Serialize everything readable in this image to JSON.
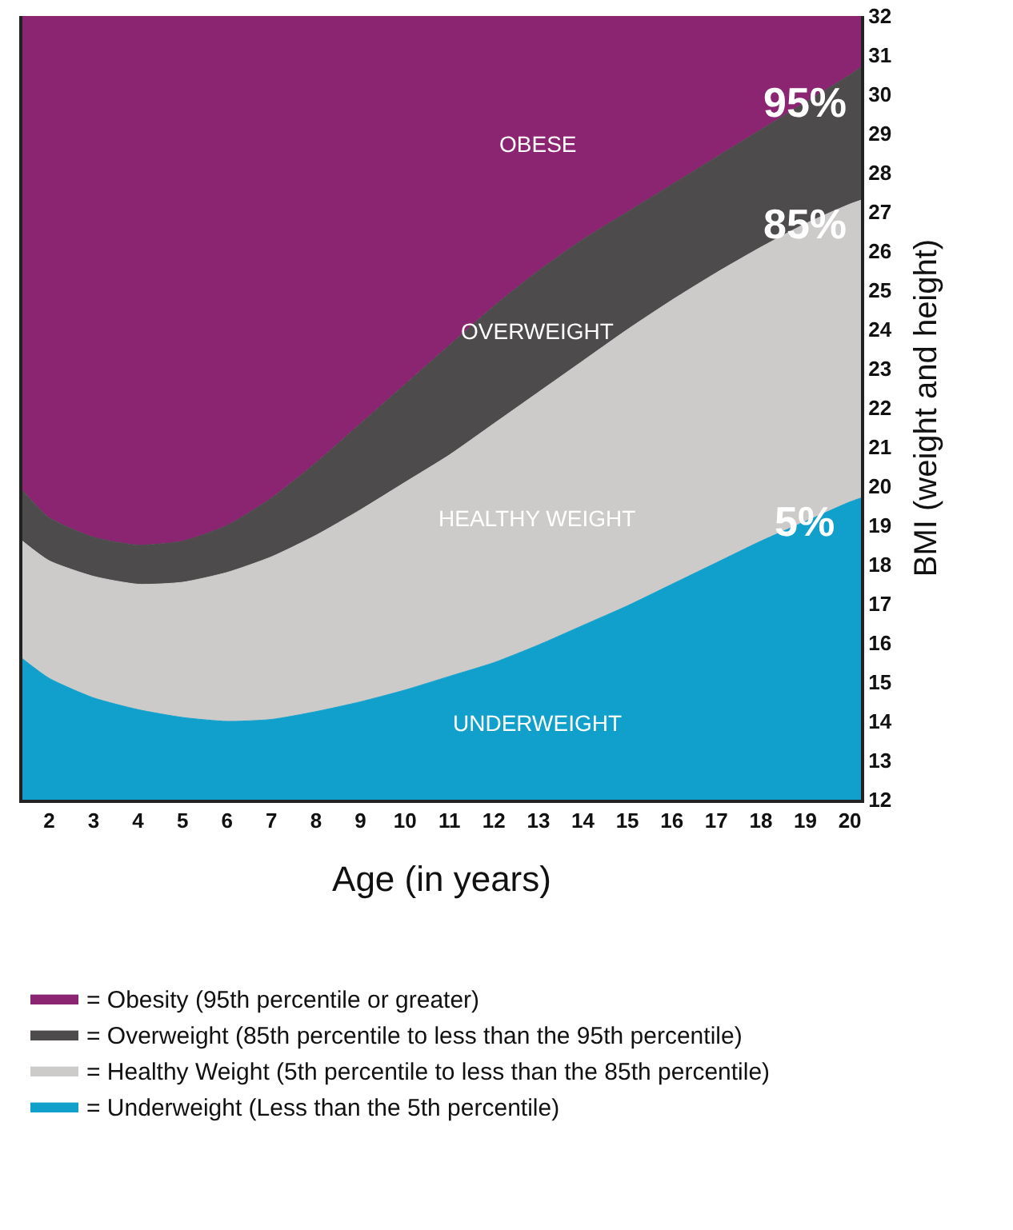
{
  "chart_data": {
    "type": "area",
    "xlabel": "Age (in years)",
    "ylabel": "BMI (weight and height)",
    "x": [
      1.4,
      2,
      3,
      4,
      5,
      6,
      7,
      8,
      9,
      10,
      11,
      12,
      13,
      14,
      15,
      16,
      17,
      18,
      19,
      20,
      20.25
    ],
    "series": [
      {
        "name": "= Underweight (Less than the 5th percentile)",
        "color": "#11a0cc",
        "values": [
          15.6,
          15.1,
          14.6,
          14.3,
          14.1,
          14.0,
          14.05,
          14.25,
          14.5,
          14.8,
          15.15,
          15.5,
          15.95,
          16.45,
          16.95,
          17.5,
          18.05,
          18.6,
          19.1,
          19.6,
          19.7
        ]
      },
      {
        "name": "= Healthy Weight (5th percentile to less than the 85th percentile)",
        "color": "#cdcaca",
        "values": [
          18.6,
          18.1,
          17.7,
          17.5,
          17.55,
          17.8,
          18.2,
          18.75,
          19.4,
          20.1,
          20.8,
          21.6,
          22.4,
          23.2,
          24.0,
          24.75,
          25.45,
          26.1,
          26.7,
          27.2,
          27.3
        ]
      },
      {
        "name": "= Overweight (85th percentile to less than the 95th percentile)",
        "color": "#4d4b4c",
        "values": [
          19.9,
          19.2,
          18.7,
          18.5,
          18.6,
          19.0,
          19.7,
          20.6,
          21.6,
          22.6,
          23.6,
          24.6,
          25.5,
          26.3,
          27.0,
          27.7,
          28.4,
          29.1,
          29.8,
          30.5,
          30.7
        ]
      },
      {
        "name": "= Obesity (95th percentile or greater)",
        "color": "#8b2572",
        "values": [
          32,
          32,
          32,
          32,
          32,
          32,
          32,
          32,
          32,
          32,
          32,
          32,
          32,
          32,
          32,
          32,
          32,
          32,
          32,
          32,
          32
        ]
      }
    ],
    "xlim": [
      1.4,
      20.25
    ],
    "xticks": [
      2,
      3,
      4,
      5,
      6,
      7,
      8,
      9,
      10,
      11,
      12,
      13,
      14,
      15,
      16,
      17,
      18,
      19,
      20
    ],
    "ylim": [
      12,
      32
    ],
    "yticks": [
      12,
      13,
      14,
      15,
      16,
      17,
      18,
      19,
      20,
      21,
      22,
      23,
      24,
      25,
      26,
      27,
      28,
      29,
      30,
      31,
      32
    ],
    "legend": "bottom",
    "marker": "none",
    "annotations": [
      "OBESE",
      "OVERWEIGHT",
      "HEALTHY WEIGHT",
      "UNDERWEIGHT",
      "95%",
      "85%",
      "5%"
    ]
  }
}
